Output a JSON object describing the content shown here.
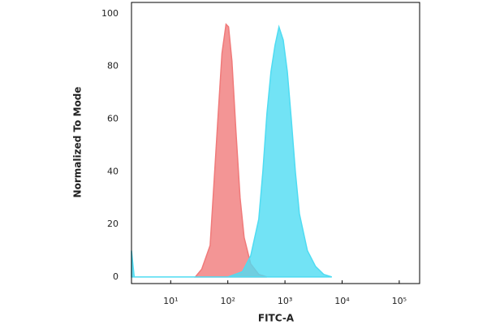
{
  "chart_data": {
    "type": "area",
    "xlabel": "FITC-A",
    "ylabel": "Normalized To Mode",
    "xscale": "log",
    "xlim": [
      2.06,
      227500
    ],
    "ylim": [
      -2.5,
      104.3
    ],
    "xticks": [
      {
        "value": 10,
        "label": "10¹"
      },
      {
        "value": 100,
        "label": "10²"
      },
      {
        "value": 1000,
        "label": "10³"
      },
      {
        "value": 10000,
        "label": "10⁴"
      },
      {
        "value": 100000,
        "label": "10⁵"
      }
    ],
    "yticks": [
      0,
      20,
      40,
      60,
      80,
      100
    ],
    "series": [
      {
        "color": "#f07a7a",
        "x": [
          27,
          35,
          49,
          57,
          67,
          79,
          93,
          103,
          118,
          139,
          164,
          193,
          251,
          348,
          483
        ],
        "values": [
          0,
          3,
          12,
          35,
          60,
          85,
          96,
          95,
          82,
          55,
          30,
          15,
          5,
          1,
          0
        ]
      },
      {
        "color": "#4fdcf2",
        "x": [
          2.06,
          2.3,
          100,
          180,
          251,
          348,
          410,
          483,
          569,
          670,
          785,
          933,
          1100,
          1290,
          1520,
          1790,
          2470,
          3430,
          4760,
          6600
        ],
        "values": [
          10,
          0,
          0,
          2,
          8,
          22,
          40,
          62,
          78,
          88,
          95,
          90,
          78,
          60,
          40,
          24,
          10,
          4,
          1,
          0
        ]
      }
    ]
  }
}
